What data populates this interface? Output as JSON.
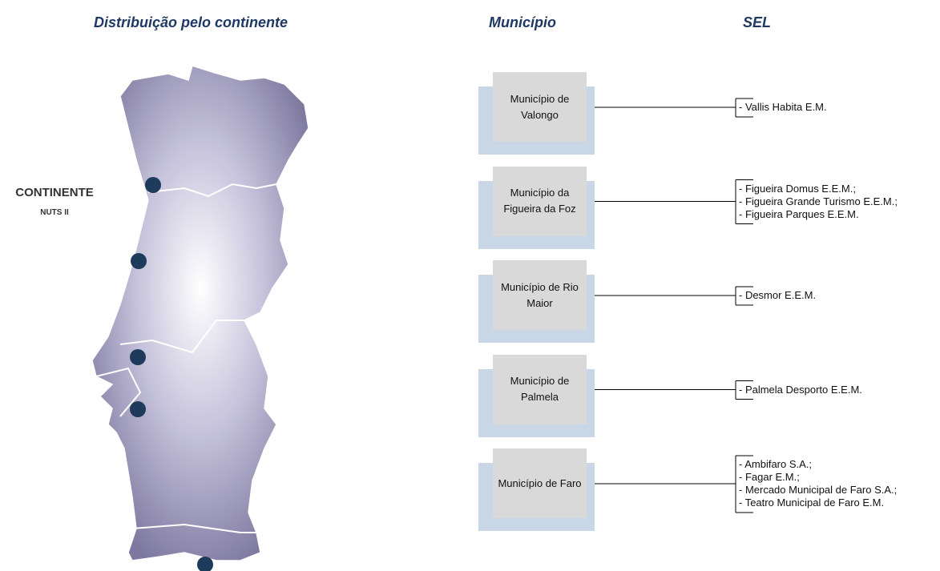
{
  "headers": {
    "map_title": "Distribuição pelo continente",
    "municipality": "Município",
    "sel": "SEL"
  },
  "map": {
    "label": "CONTINENTE",
    "sublabel": "NUTS II"
  },
  "rows": [
    {
      "municipality": "Município de Valongo",
      "entities": [
        "- Vallis Habita E.M."
      ]
    },
    {
      "municipality": "Município da Figueira da Foz",
      "entities": [
        "- Figueira Domus E.E.M.;",
        "- Figueira Grande Turismo E.E.M.;",
        "- Figueira Parques E.E.M."
      ]
    },
    {
      "municipality": "Município de Rio Maior",
      "entities": [
        "- Desmor E.E.M."
      ]
    },
    {
      "municipality": "Município de Palmela",
      "entities": [
        "- Palmela Desporto E.E.M."
      ]
    },
    {
      "municipality": "Município de Faro",
      "entities": [
        "- Ambifaro S.A.;",
        "- Fagar E.M.;",
        "- Mercado Municipal de Faro S.A.;",
        "- Teatro Municipal de Faro E.M."
      ]
    }
  ]
}
